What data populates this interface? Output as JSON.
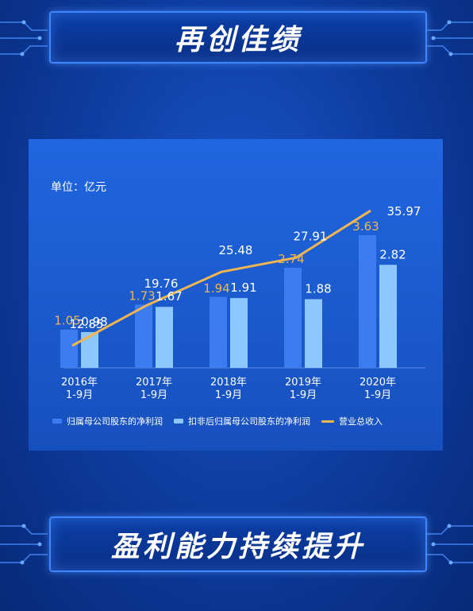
{
  "page": {
    "top_title": "再创佳绩",
    "bottom_title": "盈利能力持续提升",
    "unit_label": "单位：亿元"
  },
  "colors": {
    "net_profit": "#3b7cf0",
    "deducted_profit": "#8cc8ff",
    "revenue_line": "#f2b650",
    "bar_label": "#ffffff",
    "line_label": "#f2b650"
  },
  "chart_data": {
    "type": "bar",
    "categories": [
      "2016年\n1-9月",
      "2017年\n1-9月",
      "2018年\n1-9月",
      "2019年\n1-9月",
      "2020年\n1-9月"
    ],
    "category_lines": [
      [
        "2016年",
        "1-9月"
      ],
      [
        "2017年",
        "1-9月"
      ],
      [
        "2018年",
        "1-9月"
      ],
      [
        "2019年",
        "1-9月"
      ],
      [
        "2020年",
        "1-9月"
      ]
    ],
    "series": [
      {
        "name": "归属母公司股东的净利润",
        "kind": "bar",
        "values": [
          1.05,
          1.73,
          1.94,
          2.74,
          3.63
        ]
      },
      {
        "name": "扣非后归属母公司股东的净利润",
        "kind": "bar",
        "values": [
          0.98,
          1.67,
          1.91,
          1.88,
          2.82
        ]
      },
      {
        "name": "营业总收入",
        "kind": "line",
        "values": [
          12.85,
          19.76,
          25.48,
          27.91,
          35.97
        ]
      }
    ],
    "legend_position": "bottom",
    "grid": false
  }
}
